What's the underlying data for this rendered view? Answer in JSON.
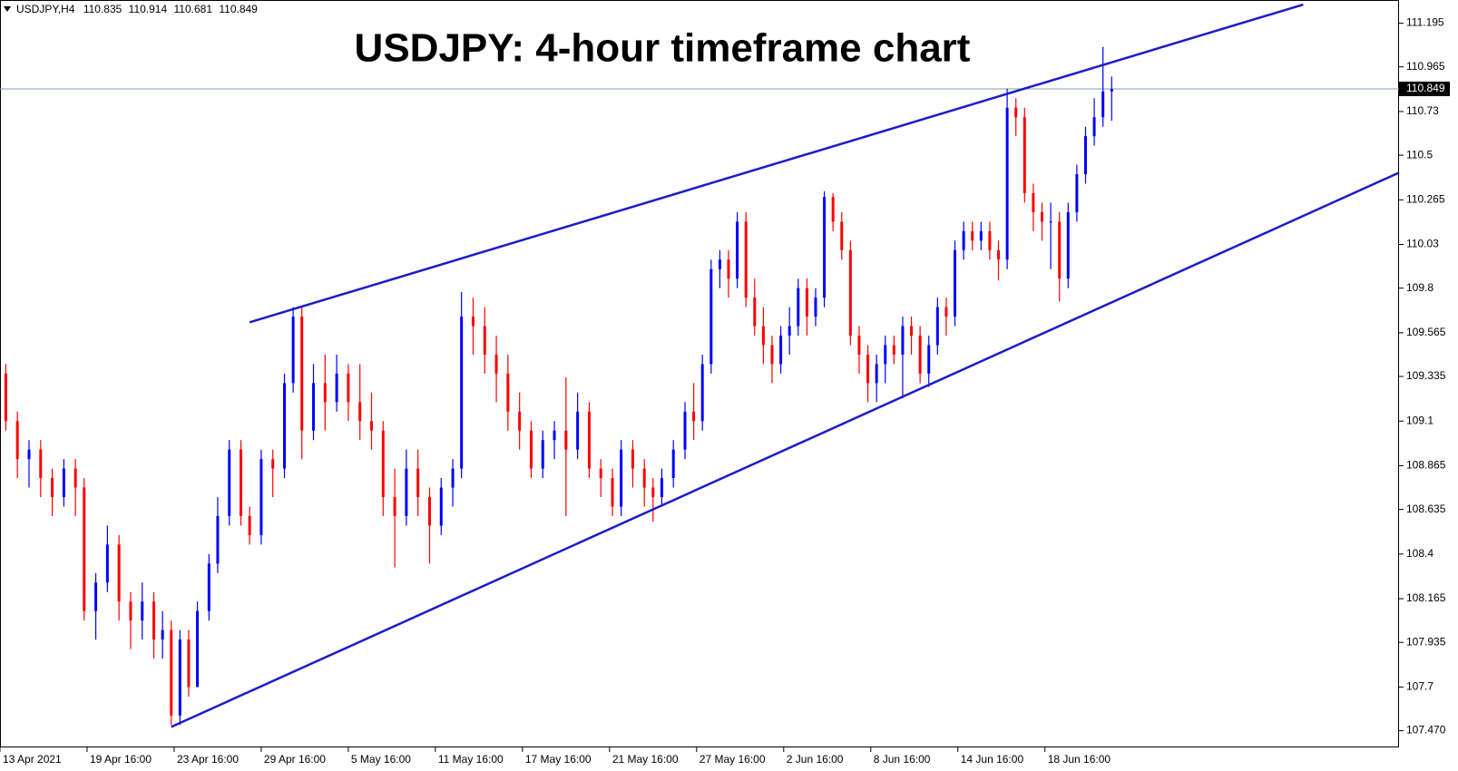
{
  "chart_data": {
    "type": "candlestick",
    "title": "USDJPY: 4-hour timeframe chart",
    "symbol": "USDJPY,H4",
    "up_color": "#0000ff",
    "down_color": "#ff0000",
    "trend_color": "#1c1cc8",
    "price_line_color": "#7f9fb8",
    "xlim": [
      0,
      482
    ],
    "xticks": [
      {
        "value": 0,
        "label": "13 Apr 2021"
      },
      {
        "value": 30,
        "label": "19 Apr 16:00"
      },
      {
        "value": 60,
        "label": "23 Apr 16:00"
      },
      {
        "value": 90,
        "label": "29 Apr 16:00"
      },
      {
        "value": 120,
        "label": "5 May 16:00"
      },
      {
        "value": 150,
        "label": "11 May 16:00"
      },
      {
        "value": 180,
        "label": "17 May 16:00"
      },
      {
        "value": 210,
        "label": "21 May 16:00"
      },
      {
        "value": 240,
        "label": "27 May 16:00"
      },
      {
        "value": 270,
        "label": "2 Jun 16:00"
      },
      {
        "value": 300,
        "label": "8 Jun 16:00"
      },
      {
        "value": 330,
        "label": "14 Jun 16:00"
      },
      {
        "value": 360,
        "label": "18 Jun 16:00"
      }
    ],
    "ylim": [
      107.382,
      111.317
    ],
    "yticks": [
      {
        "value": 107.47,
        "label": "107.470"
      },
      107.7,
      107.935,
      108.165,
      108.4,
      108.635,
      108.865,
      109.1,
      109.335,
      109.565,
      109.8,
      110.03,
      110.265,
      110.5,
      110.73,
      110.965,
      111.195
    ],
    "x": [
      2,
      6,
      10,
      14,
      18,
      22,
      26,
      29,
      33,
      37,
      41,
      45,
      49,
      53,
      56,
      59,
      62,
      65,
      68,
      72,
      75,
      79,
      83,
      86,
      90,
      94,
      98,
      101,
      104,
      108,
      112,
      116,
      120,
      124,
      128,
      132,
      136,
      140,
      144,
      148,
      152,
      156,
      159,
      163,
      167,
      171,
      175,
      179,
      183,
      187,
      191,
      195,
      199,
      203,
      207,
      211,
      214,
      218,
      222,
      225,
      228,
      232,
      236,
      239,
      242,
      245,
      248,
      251,
      254,
      257,
      260,
      263,
      266,
      269,
      272,
      275,
      278,
      281,
      284,
      287,
      290,
      293,
      296,
      299,
      302,
      305,
      308,
      311,
      314,
      317,
      320,
      323,
      326,
      329,
      332,
      335,
      338,
      341,
      344,
      347,
      350,
      353,
      356,
      359,
      362,
      365,
      368,
      371,
      374,
      377,
      380,
      383
    ],
    "open": [
      109.35,
      109.1,
      108.9,
      108.95,
      108.8,
      108.7,
      108.85,
      108.75,
      108.1,
      108.25,
      108.45,
      108.15,
      108.05,
      108.15,
      107.95,
      108,
      107.55,
      107.95,
      107.7,
      108.1,
      108.35,
      108.6,
      108.95,
      108.6,
      108.5,
      108.9,
      108.85,
      109.3,
      109.65,
      109.05,
      109.3,
      109.2,
      109.35,
      109.2,
      109.1,
      109.05,
      108.7,
      108.6,
      108.85,
      108.7,
      108.55,
      108.75,
      108.85,
      109.65,
      109.6,
      109.45,
      109.35,
      109.15,
      109.05,
      108.85,
      109,
      109.05,
      108.95,
      109.15,
      108.85,
      108.8,
      108.65,
      108.95,
      108.85,
      108.75,
      108.7,
      108.8,
      108.95,
      109.15,
      109.1,
      109.4,
      109.9,
      109.95,
      109.85,
      110.15,
      109.75,
      109.6,
      109.5,
      109.4,
      109.55,
      109.6,
      109.8,
      109.65,
      109.75,
      110.28,
      110.15,
      110,
      109.55,
      109.45,
      109.3,
      109.4,
      109.5,
      109.45,
      109.6,
      109.55,
      109.35,
      109.5,
      109.7,
      109.65,
      110,
      110.1,
      110.05,
      110.1,
      110,
      109.95,
      110.75,
      110.7,
      110.3,
      110.2,
      110.15,
      110.15,
      109.85,
      110.2,
      110.4,
      110.6,
      110.7,
      110.835
    ],
    "high": [
      109.4,
      109.15,
      109,
      109,
      108.85,
      108.9,
      108.9,
      108.8,
      108.3,
      108.55,
      108.5,
      108.2,
      108.25,
      108.2,
      108.1,
      108.05,
      108,
      108,
      108.15,
      108.4,
      108.7,
      109,
      109,
      108.65,
      108.95,
      108.95,
      109.35,
      109.7,
      109.7,
      109.4,
      109.45,
      109.45,
      109.4,
      109.4,
      109.25,
      109.1,
      108.85,
      108.95,
      108.95,
      108.75,
      108.8,
      108.9,
      109.78,
      109.75,
      109.7,
      109.55,
      109.45,
      109.25,
      109.1,
      109.05,
      109.1,
      109.33,
      109.25,
      109.2,
      108.9,
      108.85,
      109,
      109,
      108.9,
      108.8,
      108.85,
      109,
      109.2,
      109.3,
      109.45,
      109.95,
      110,
      110,
      110.2,
      110.2,
      109.85,
      109.7,
      109.55,
      109.6,
      109.7,
      109.85,
      109.85,
      109.8,
      110.31,
      110.3,
      110.2,
      110.05,
      109.6,
      109.5,
      109.45,
      109.55,
      109.55,
      109.65,
      109.65,
      109.6,
      109.55,
      109.75,
      109.75,
      110.05,
      110.15,
      110.15,
      110.15,
      110.15,
      110.05,
      110.85,
      110.8,
      110.75,
      110.35,
      110.25,
      110.25,
      110.2,
      110.25,
      110.45,
      110.65,
      110.8,
      111.07,
      110.914
    ],
    "low": [
      109.05,
      108.8,
      108.75,
      108.7,
      108.6,
      108.65,
      108.6,
      108.05,
      107.95,
      108.2,
      108.05,
      107.9,
      107.95,
      107.85,
      107.85,
      107.5,
      107.5,
      107.65,
      107.7,
      108.05,
      108.3,
      108.55,
      108.55,
      108.45,
      108.45,
      108.7,
      108.8,
      109.25,
      108.9,
      109,
      109.05,
      109.15,
      109.1,
      109,
      108.95,
      108.6,
      108.33,
      108.55,
      108.6,
      108.35,
      108.5,
      108.65,
      108.8,
      109.45,
      109.35,
      109.2,
      109.05,
      108.95,
      108.8,
      108.8,
      108.9,
      108.6,
      108.9,
      108.8,
      108.7,
      108.6,
      108.6,
      108.75,
      108.65,
      108.57,
      108.65,
      108.75,
      108.9,
      109,
      109.05,
      109.35,
      109.8,
      109.75,
      109.8,
      109.7,
      109.55,
      109.4,
      109.3,
      109.35,
      109.45,
      109.55,
      109.55,
      109.6,
      109.7,
      110.1,
      109.95,
      109.5,
      109.35,
      109.2,
      109.2,
      109.3,
      109.4,
      109.22,
      109.45,
      109.3,
      109.28,
      109.45,
      109.55,
      109.6,
      109.95,
      110,
      110,
      109.95,
      109.84,
      109.9,
      110.6,
      110.25,
      110.1,
      110.05,
      109.9,
      109.73,
      109.8,
      110.15,
      110.35,
      110.55,
      110.65,
      110.681
    ],
    "close": [
      109.1,
      108.9,
      108.95,
      108.8,
      108.7,
      108.85,
      108.75,
      108.1,
      108.25,
      108.45,
      108.15,
      108.05,
      108.15,
      107.95,
      108,
      107.55,
      107.95,
      107.7,
      108.1,
      108.35,
      108.6,
      108.95,
      108.6,
      108.5,
      108.9,
      108.85,
      109.3,
      109.65,
      109.05,
      109.3,
      109.2,
      109.35,
      109.2,
      109.1,
      109.05,
      108.7,
      108.6,
      108.85,
      108.7,
      108.55,
      108.75,
      108.85,
      109.65,
      109.6,
      109.45,
      109.35,
      109.15,
      109.05,
      108.85,
      109,
      109.05,
      108.95,
      109.15,
      108.85,
      108.8,
      108.65,
      108.95,
      108.85,
      108.75,
      108.7,
      108.8,
      108.95,
      109.15,
      109.1,
      109.4,
      109.9,
      109.95,
      109.85,
      110.15,
      109.75,
      109.6,
      109.5,
      109.4,
      109.55,
      109.6,
      109.8,
      109.65,
      109.75,
      110.28,
      110.15,
      110,
      109.55,
      109.45,
      109.3,
      109.4,
      109.5,
      109.45,
      109.6,
      109.55,
      109.35,
      109.5,
      109.7,
      109.65,
      110,
      110.1,
      110.05,
      110.1,
      110,
      109.95,
      110.75,
      110.7,
      110.3,
      110.2,
      110.15,
      110.15,
      109.85,
      110.2,
      110.4,
      110.6,
      110.7,
      110.835,
      110.849
    ],
    "trendlines": [
      {
        "x": [
          86,
          449
        ],
        "y": [
          109.62,
          111.293
        ]
      },
      {
        "x": [
          59,
          482
        ],
        "y": [
          107.49,
          110.408
        ]
      }
    ]
  }
}
